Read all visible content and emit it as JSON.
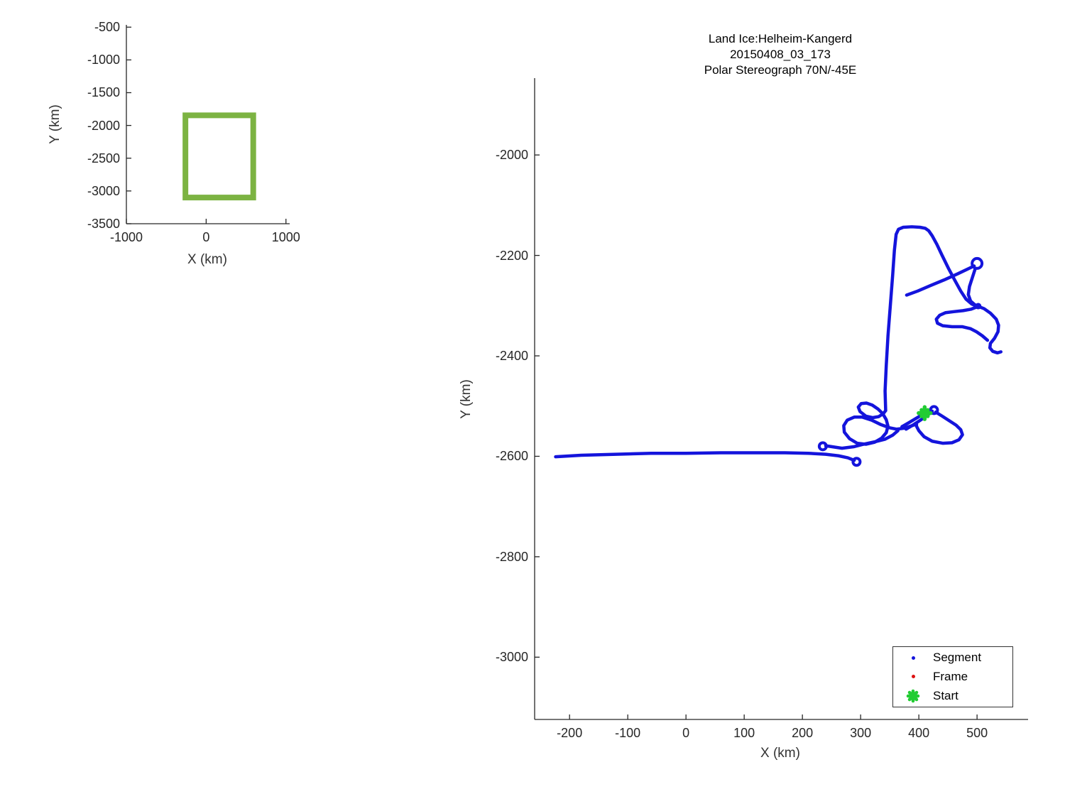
{
  "window": {
    "background": "#ffffff"
  },
  "colors": {
    "track_blue": "#1414DC",
    "coverage_green": "#7CB342",
    "start_green": "#22CC33",
    "frame_red": "#DD1111",
    "axis_gray": "#262626"
  },
  "chart_data": [
    {
      "id": "overview-inset",
      "type": "line",
      "xlabel": "X (km)",
      "ylabel": "Y (km)",
      "xlim": [
        -1000,
        1020
      ],
      "ylim": [
        -3500,
        -465
      ],
      "xticks": [
        -1000,
        0,
        1000
      ],
      "yticks": [
        -500,
        -1000,
        -1500,
        -2000,
        -2500,
        -3000,
        -3500
      ],
      "grid": false,
      "series": [
        {
          "name": "coverage-box",
          "color": "#7CB342",
          "linewidth": 8,
          "closed": true,
          "x": [
            -260,
            590,
            590,
            -260
          ],
          "y": [
            -1845,
            -1845,
            -3100,
            -3100
          ]
        }
      ]
    },
    {
      "id": "flight-track",
      "type": "line",
      "title_lines": [
        "Land Ice:Helheim-Kangerd",
        "20150408_03_173",
        "Polar Stereograph 70N/-45E"
      ],
      "xlabel": "X (km)",
      "ylabel": "Y (km)",
      "xlim": [
        -260,
        584
      ],
      "ylim": [
        -3124,
        -1847
      ],
      "xticks": [
        -200,
        -100,
        0,
        100,
        200,
        300,
        400,
        500
      ],
      "yticks": [
        -2000,
        -2200,
        -2400,
        -2600,
        -2800,
        -3000
      ],
      "grid": false,
      "legend": [
        {
          "label": "Segment",
          "color": "#1414DC",
          "marker": "dot"
        },
        {
          "label": "Frame",
          "color": "#DD1111",
          "marker": "dot"
        },
        {
          "label": "Start",
          "color": "#22CC33",
          "marker": "star"
        }
      ],
      "legend_position": "bottom-right",
      "start_point": {
        "x": 410,
        "y": -2514
      },
      "turn_circles": [
        {
          "x": 293,
          "y": -2611,
          "r": 5
        },
        {
          "x": 235,
          "y": -2580,
          "r": 5
        },
        {
          "x": 500,
          "y": -2216,
          "r": 7
        },
        {
          "x": 426,
          "y": -2508,
          "r": 5
        }
      ],
      "junction_blob": {
        "x": 502,
        "y": -2301,
        "r": 4.5
      },
      "track_segments": [
        [
          [
            -224,
            -2601
          ],
          [
            -180,
            -2598
          ],
          [
            -120,
            -2596
          ],
          [
            -60,
            -2594
          ],
          [
            0,
            -2594
          ],
          [
            60,
            -2593
          ],
          [
            120,
            -2593
          ],
          [
            170,
            -2593
          ],
          [
            210,
            -2594
          ],
          [
            240,
            -2596
          ],
          [
            262,
            -2599
          ],
          [
            278,
            -2603
          ],
          [
            289,
            -2608
          ]
        ],
        [
          [
            240,
            -2579
          ],
          [
            268,
            -2584
          ],
          [
            288,
            -2581
          ],
          [
            305,
            -2576
          ],
          [
            325,
            -2571
          ],
          [
            342,
            -2566
          ],
          [
            355,
            -2558
          ],
          [
            364,
            -2549
          ]
        ],
        [
          [
            343,
            -2509
          ],
          [
            339,
            -2515
          ],
          [
            331,
            -2521
          ],
          [
            321,
            -2523
          ],
          [
            309,
            -2520
          ],
          [
            299,
            -2511
          ],
          [
            296,
            -2502
          ],
          [
            301,
            -2495
          ],
          [
            310,
            -2494
          ],
          [
            320,
            -2498
          ],
          [
            330,
            -2506
          ],
          [
            338,
            -2515
          ],
          [
            344,
            -2527
          ],
          [
            347,
            -2540
          ],
          [
            344,
            -2553
          ],
          [
            336,
            -2564
          ],
          [
            324,
            -2572
          ],
          [
            309,
            -2576
          ],
          [
            294,
            -2574
          ],
          [
            281,
            -2565
          ],
          [
            272,
            -2552
          ],
          [
            271,
            -2539
          ],
          [
            277,
            -2528
          ],
          [
            289,
            -2522
          ],
          [
            303,
            -2522
          ],
          [
            319,
            -2528
          ],
          [
            335,
            -2537
          ],
          [
            349,
            -2543
          ],
          [
            362,
            -2546
          ],
          [
            375,
            -2544
          ],
          [
            388,
            -2539
          ],
          [
            396,
            -2536
          ]
        ],
        [
          [
            371,
            -2541
          ],
          [
            383,
            -2533
          ],
          [
            396,
            -2524
          ],
          [
            406,
            -2517
          ],
          [
            410,
            -2513
          ]
        ],
        [
          [
            378,
            -2546
          ],
          [
            391,
            -2537
          ],
          [
            404,
            -2527
          ],
          [
            416,
            -2517
          ],
          [
            423,
            -2510
          ]
        ],
        [
          [
            429,
            -2512
          ],
          [
            440,
            -2520
          ],
          [
            452,
            -2529
          ],
          [
            464,
            -2538
          ],
          [
            472,
            -2547
          ],
          [
            475,
            -2557
          ],
          [
            469,
            -2567
          ],
          [
            457,
            -2573
          ],
          [
            441,
            -2574
          ],
          [
            423,
            -2570
          ],
          [
            409,
            -2561
          ],
          [
            400,
            -2549
          ],
          [
            396,
            -2540
          ],
          [
            396,
            -2536
          ]
        ],
        [
          [
            343,
            -2509
          ],
          [
            342,
            -2470
          ],
          [
            344,
            -2420
          ],
          [
            347,
            -2360
          ],
          [
            351,
            -2300
          ],
          [
            355,
            -2240
          ],
          [
            358,
            -2190
          ],
          [
            361,
            -2158
          ],
          [
            365,
            -2148
          ],
          [
            373,
            -2144
          ],
          [
            388,
            -2143
          ],
          [
            402,
            -2144
          ],
          [
            411,
            -2146
          ],
          [
            417,
            -2151
          ],
          [
            423,
            -2161
          ],
          [
            431,
            -2178
          ],
          [
            440,
            -2200
          ],
          [
            451,
            -2226
          ],
          [
            462,
            -2250
          ],
          [
            472,
            -2271
          ],
          [
            481,
            -2287
          ],
          [
            491,
            -2297
          ],
          [
            500,
            -2301
          ]
        ],
        [
          [
            379,
            -2279
          ],
          [
            398,
            -2271
          ],
          [
            420,
            -2260
          ],
          [
            443,
            -2249
          ],
          [
            466,
            -2237
          ],
          [
            486,
            -2226
          ],
          [
            495,
            -2221
          ]
        ],
        [
          [
            497,
            -2226
          ],
          [
            492,
            -2244
          ],
          [
            487,
            -2262
          ],
          [
            485,
            -2278
          ],
          [
            489,
            -2291
          ],
          [
            496,
            -2298
          ],
          [
            501,
            -2301
          ]
        ],
        [
          [
            501,
            -2302
          ],
          [
            490,
            -2307
          ],
          [
            476,
            -2310
          ],
          [
            460,
            -2312
          ],
          [
            446,
            -2314
          ],
          [
            436,
            -2319
          ],
          [
            430,
            -2327
          ],
          [
            432,
            -2335
          ],
          [
            441,
            -2340
          ],
          [
            457,
            -2342
          ],
          [
            475,
            -2342
          ],
          [
            489,
            -2346
          ],
          [
            499,
            -2352
          ],
          [
            509,
            -2360
          ],
          [
            518,
            -2369
          ]
        ],
        [
          [
            501,
            -2301
          ],
          [
            512,
            -2306
          ],
          [
            523,
            -2315
          ],
          [
            533,
            -2327
          ],
          [
            537,
            -2339
          ],
          [
            536,
            -2352
          ],
          [
            530,
            -2365
          ],
          [
            523,
            -2375
          ],
          [
            522,
            -2384
          ],
          [
            527,
            -2391
          ],
          [
            535,
            -2394
          ],
          [
            541,
            -2392
          ]
        ]
      ]
    }
  ]
}
